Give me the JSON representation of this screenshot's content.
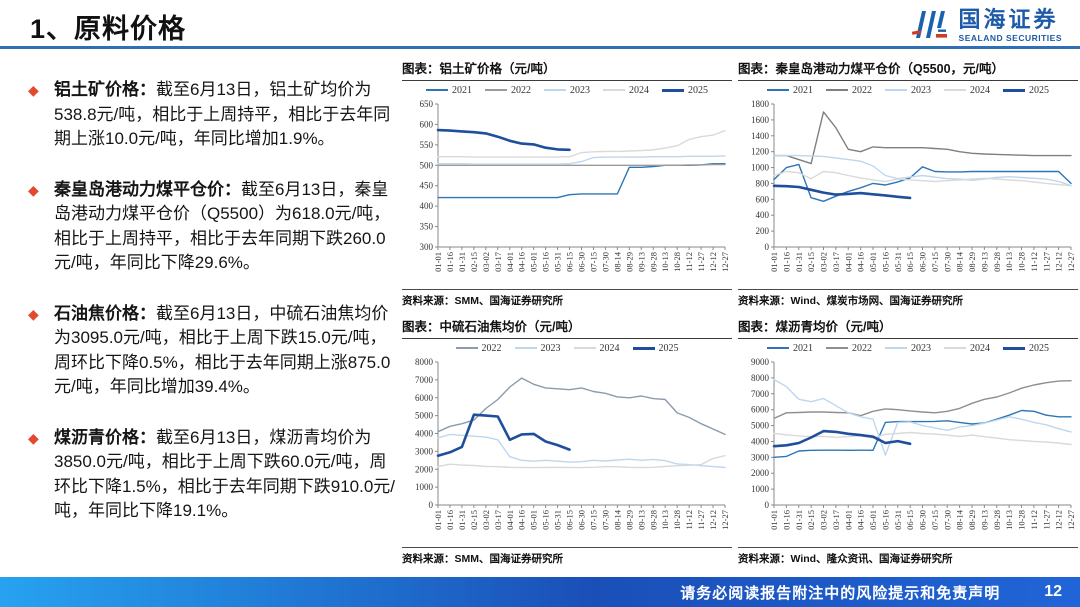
{
  "slide": {
    "title": "1、原料价格",
    "logo_cn": "国海证券",
    "logo_en": "SEALAND SECURITIES",
    "footer_text": "请务必阅读报告附注中的风险提示和免责声明",
    "page_number": "12"
  },
  "colors": {
    "accent_rule": "#2e6fb7",
    "bullet_diamond": "#e2492f",
    "logo_blue": "#1e5aa8",
    "logo_red": "#d03a2b",
    "footer_left": "#27a2f0",
    "footer_right": "#2065d8",
    "year_2021": "#2E75B6",
    "year_2022": "#8C8C8C",
    "year_2023": "#BDD7EE",
    "year_2024": "#D9D9D9",
    "year_2025": "#1F4E9C"
  },
  "bullets": [
    {
      "title": "铝土矿价格：",
      "text": "截至6月13日，铝土矿均价为538.8元/吨，相比于上周持平，相比于去年同期上涨10.0元/吨，年同比增加1.9%。"
    },
    {
      "title": "秦皇岛港动力煤平仓价：",
      "text": "截至6月13日，秦皇岛港动力煤平仓价（Q5500）为618.0元/吨，相比于上周持平，相比于去年同期下跌260.0元/吨，年同比下降29.6%。"
    },
    {
      "title": "石油焦价格：",
      "text": "截至6月13日，中硫石油焦均价为3095.0元/吨，相比于上周下跌15.0元/吨，周环比下降0.5%，相比于去年同期上涨875.0元/吨，年同比增加39.4%。"
    },
    {
      "title": "煤沥青价格：",
      "text": "截至6月13日，煤沥青均价为3850.0元/吨，相比于上周下跌60.0元/吨，周环比下降1.5%，相比于去年同期下跌910.0元/吨，年同比下降19.1%。"
    }
  ],
  "chart_data": [
    {
      "type": "line",
      "title": "图表：铝土矿价格（元/吨）",
      "source": "资料来源：SMM、国海证券研究所",
      "ylim": [
        300,
        650
      ],
      "yticks": [
        300,
        350,
        400,
        450,
        500,
        550,
        600,
        650
      ],
      "grid": false,
      "legend_position": "top",
      "categories": [
        "01-01",
        "01-16",
        "01-31",
        "02-15",
        "03-02",
        "03-17",
        "04-01",
        "04-16",
        "05-01",
        "05-16",
        "05-31",
        "06-15",
        "06-30",
        "07-15",
        "07-30",
        "08-14",
        "08-29",
        "09-13",
        "09-28",
        "10-13",
        "10-28",
        "11-12",
        "11-27",
        "12-12",
        "12-27"
      ],
      "series": [
        {
          "name": "2021",
          "color": "#2E75B6",
          "width": 1.4,
          "values": [
            421,
            421,
            421,
            421,
            421,
            421,
            421,
            421,
            421,
            421,
            421,
            428,
            430,
            430,
            430,
            430,
            495,
            495,
            497,
            500,
            500,
            500,
            501,
            504,
            504
          ]
        },
        {
          "name": "2022",
          "color": "#9B9B9B",
          "width": 1.4,
          "values": [
            500,
            500,
            500,
            500,
            500,
            500,
            500,
            500,
            500,
            500,
            500,
            500,
            500,
            500,
            500,
            500,
            500,
            500,
            500,
            500,
            500,
            501,
            501,
            502,
            502
          ]
        },
        {
          "name": "2023",
          "color": "#BDD7EE",
          "width": 1.4,
          "values": [
            504,
            504,
            504,
            503,
            503,
            503,
            503,
            503,
            503,
            503,
            503,
            504,
            509,
            519,
            520,
            520,
            520,
            520,
            521,
            521,
            521,
            522,
            522,
            522,
            523
          ]
        },
        {
          "name": "2024",
          "color": "#D9D9D9",
          "width": 1.4,
          "values": [
            521,
            521,
            521,
            520,
            520,
            520,
            520,
            520,
            520,
            520,
            520,
            521,
            531,
            533,
            534,
            534,
            535,
            536,
            538,
            542,
            548,
            563,
            570,
            574,
            585
          ]
        },
        {
          "name": "2025",
          "color": "#1F4E9C",
          "width": 2.6,
          "values": [
            586,
            585,
            583,
            581,
            578,
            570,
            560,
            553,
            551,
            543,
            539,
            538
          ]
        }
      ]
    },
    {
      "type": "line",
      "title": "图表：秦皇岛港动力煤平仓价（Q5500，元/吨）",
      "source": "资料来源：Wind、煤炭市场网、国海证券研究所",
      "ylim": [
        0,
        1800
      ],
      "yticks": [
        0,
        200,
        400,
        600,
        800,
        1000,
        1200,
        1400,
        1600,
        1800
      ],
      "grid": false,
      "legend_position": "top",
      "categories": [
        "01-01",
        "01-16",
        "01-31",
        "02-15",
        "03-02",
        "03-17",
        "04-01",
        "04-16",
        "05-01",
        "05-16",
        "05-31",
        "06-15",
        "06-30",
        "07-15",
        "07-30",
        "08-14",
        "08-29",
        "09-13",
        "09-28",
        "10-13",
        "10-28",
        "11-12",
        "11-27",
        "12-12",
        "12-27"
      ],
      "series": [
        {
          "name": "2021",
          "color": "#2E75B6",
          "width": 1.4,
          "values": [
            850,
            1000,
            1040,
            620,
            575,
            640,
            700,
            745,
            800,
            780,
            820,
            870,
            1010,
            950,
            945,
            945,
            950,
            950,
            950,
            950,
            950,
            950,
            950,
            950,
            800
          ]
        },
        {
          "name": "2022",
          "color": "#7F7F7F",
          "width": 1.4,
          "values": [
            1150,
            1150,
            1100,
            1050,
            1700,
            1500,
            1230,
            1200,
            1260,
            1250,
            1250,
            1250,
            1250,
            1240,
            1230,
            1200,
            1180,
            1170,
            1165,
            1160,
            1155,
            1150,
            1150,
            1150,
            1150
          ]
        },
        {
          "name": "2023",
          "color": "#BDD7EE",
          "width": 1.4,
          "values": [
            1150,
            1150,
            1150,
            1145,
            1140,
            1120,
            1100,
            1080,
            1020,
            900,
            860,
            880,
            900,
            880,
            860,
            855,
            840,
            855,
            875,
            885,
            875,
            865,
            855,
            825,
            775
          ]
        },
        {
          "name": "2024",
          "color": "#D9D9D9",
          "width": 1.4,
          "values": [
            900,
            950,
            935,
            860,
            950,
            935,
            900,
            870,
            845,
            825,
            855,
            845,
            835,
            825,
            835,
            845,
            855,
            865,
            855,
            845,
            835,
            820,
            800,
            785,
            770
          ]
        },
        {
          "name": "2025",
          "color": "#1F4E9C",
          "width": 2.6,
          "values": [
            770,
            765,
            755,
            720,
            685,
            660,
            668,
            678,
            663,
            650,
            632,
            618
          ]
        }
      ]
    },
    {
      "type": "line",
      "title": "图表：中硫石油焦均价（元/吨）",
      "source": "资料来源：SMM、国海证券研究所",
      "ylim": [
        0,
        8000
      ],
      "yticks": [
        0,
        1000,
        2000,
        3000,
        4000,
        5000,
        6000,
        7000,
        8000
      ],
      "grid": false,
      "legend_position": "top",
      "categories": [
        "01-01",
        "01-16",
        "01-31",
        "02-15",
        "03-02",
        "03-17",
        "04-01",
        "04-16",
        "05-01",
        "05-16",
        "05-31",
        "06-15",
        "06-30",
        "07-15",
        "07-30",
        "08-14",
        "08-29",
        "09-13",
        "09-28",
        "10-13",
        "10-28",
        "11-12",
        "11-27",
        "12-12",
        "12-27"
      ],
      "series": [
        {
          "name": "2022",
          "color": "#8C9BAB",
          "width": 1.4,
          "values": [
            4100,
            4400,
            4550,
            4750,
            5400,
            5900,
            6600,
            7100,
            6750,
            6550,
            6500,
            6450,
            6550,
            6350,
            6250,
            6050,
            6000,
            6100,
            5950,
            5900,
            5150,
            4900,
            4550,
            4250,
            3950
          ]
        },
        {
          "name": "2023",
          "color": "#BDD7EE",
          "width": 1.4,
          "values": [
            3750,
            3950,
            3900,
            3850,
            3800,
            3650,
            2700,
            2500,
            2450,
            2500,
            2450,
            2400,
            2420,
            2500,
            2460,
            2520,
            2560,
            2500,
            2550,
            2480,
            2300,
            2260,
            2200,
            2150,
            2100
          ]
        },
        {
          "name": "2024",
          "color": "#D9D9D9",
          "width": 1.4,
          "values": [
            2150,
            2280,
            2230,
            2210,
            2160,
            2140,
            2110,
            2100,
            2090,
            2100,
            2110,
            2100,
            2090,
            2110,
            2150,
            2140,
            2110,
            2100,
            2110,
            2160,
            2200,
            2220,
            2260,
            2600,
            2760
          ]
        },
        {
          "name": "2025",
          "color": "#1F4E9C",
          "width": 2.6,
          "values": [
            2760,
            2950,
            3250,
            5050,
            5000,
            4950,
            3650,
            3950,
            3980,
            3550,
            3350,
            3100
          ]
        }
      ]
    },
    {
      "type": "line",
      "title": "图表：煤沥青均价（元/吨）",
      "source": "资料来源：Wind、隆众资讯、国海证券研究所",
      "ylim": [
        0,
        9000
      ],
      "yticks": [
        0,
        1000,
        2000,
        3000,
        4000,
        5000,
        6000,
        7000,
        8000,
        9000
      ],
      "grid": false,
      "legend_position": "top",
      "categories": [
        "01-01",
        "01-16",
        "01-31",
        "02-15",
        "03-02",
        "03-17",
        "04-01",
        "04-16",
        "05-01",
        "05-16",
        "05-31",
        "06-15",
        "06-30",
        "07-15",
        "07-30",
        "08-14",
        "08-29",
        "09-13",
        "09-28",
        "10-13",
        "10-28",
        "11-12",
        "11-27",
        "12-12",
        "12-27"
      ],
      "series": [
        {
          "name": "2021",
          "color": "#2E75B6",
          "width": 1.4,
          "values": [
            3000,
            3060,
            3400,
            3440,
            3450,
            3450,
            3440,
            3450,
            3440,
            5200,
            5250,
            5250,
            5250,
            5260,
            5300,
            5200,
            5100,
            5160,
            5400,
            5650,
            5950,
            5900,
            5650,
            5550,
            5550
          ]
        },
        {
          "name": "2022",
          "color": "#8F8F8F",
          "width": 1.4,
          "values": [
            5450,
            5800,
            5820,
            5850,
            5850,
            5820,
            5800,
            5620,
            5900,
            6050,
            6000,
            5920,
            5850,
            5800,
            5900,
            6080,
            6400,
            6650,
            6800,
            7050,
            7350,
            7550,
            7700,
            7800,
            7820
          ]
        },
        {
          "name": "2023",
          "color": "#BDD7EE",
          "width": 1.4,
          "values": [
            7900,
            7450,
            6650,
            6500,
            6700,
            6250,
            5800,
            5550,
            5400,
            3150,
            5200,
            5230,
            5000,
            4850,
            4700,
            4900,
            5000,
            5150,
            5350,
            5550,
            5400,
            5200,
            5050,
            4800,
            4600
          ]
        },
        {
          "name": "2024",
          "color": "#D9D9D9",
          "width": 1.4,
          "values": [
            4500,
            4420,
            4350,
            4300,
            4320,
            4260,
            4300,
            4360,
            4220,
            4450,
            4500,
            4560,
            4500,
            4460,
            4400,
            4310,
            4400,
            4300,
            4210,
            4110,
            4060,
            4000,
            3960,
            3900,
            3810
          ]
        },
        {
          "name": "2025",
          "color": "#1F4E9C",
          "width": 2.6,
          "values": [
            3700,
            3760,
            3900,
            4250,
            4650,
            4600,
            4480,
            4400,
            4300,
            3900,
            4020,
            3850
          ]
        }
      ]
    }
  ]
}
